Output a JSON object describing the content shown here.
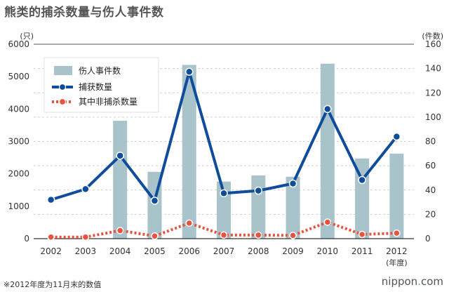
{
  "title": "熊类的捕杀数量与伤人事件数",
  "footnote": "※2012年度为11月末的数值",
  "brand": {
    "pre": "nippon",
    "dot": ".",
    "post": "com"
  },
  "chart_data": {
    "type": "bar+line",
    "categories": [
      "2002",
      "2003",
      "2004",
      "2005",
      "2006",
      "2007",
      "2008",
      "2009",
      "2010",
      "2011",
      "2012"
    ],
    "x_suffix_label": "(年度)",
    "left_axis": {
      "label": "(只)",
      "min": 0,
      "max": 6000,
      "ticks": [
        0,
        1000,
        2000,
        3000,
        4000,
        5000,
        6000
      ]
    },
    "right_axis": {
      "label": "(件数)",
      "min": 0,
      "max": 160,
      "ticks": [
        0,
        20,
        40,
        60,
        80,
        100,
        120,
        140,
        160
      ]
    },
    "grid": "dashed horizontal at right-axis ticks",
    "legend_position": "top-left",
    "series": [
      {
        "name": "伤人事件数",
        "kind": "bar",
        "axis": "right",
        "color": "#a9c3cb",
        "values": [
          null,
          null,
          97,
          55,
          143,
          47,
          52,
          51,
          144,
          66,
          70
        ]
      },
      {
        "name": "捕获数量",
        "kind": "line",
        "axis": "left",
        "color": "#0f4c9c",
        "values": [
          1200,
          1530,
          2560,
          1170,
          5150,
          1400,
          1480,
          1700,
          4000,
          1810,
          3150
        ]
      },
      {
        "name": "其中非捕杀数量",
        "kind": "line-dotted",
        "axis": "left",
        "color": "#e8533f",
        "values": [
          50,
          50,
          250,
          80,
          480,
          110,
          110,
          100,
          510,
          130,
          170
        ]
      }
    ]
  }
}
